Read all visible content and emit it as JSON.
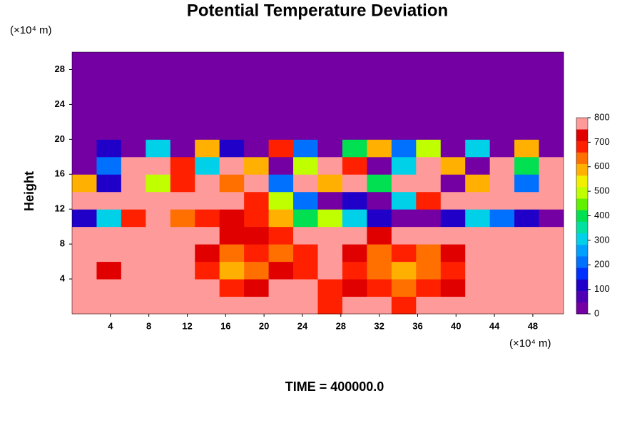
{
  "chart_data": {
    "type": "contour",
    "title": "Potential Temperature Deviation",
    "ylabel": "Height",
    "x_unit": "(×10⁴ m)",
    "y_unit": "(×10⁴ m)",
    "footer": "TIME = 400000.0",
    "xlim": [
      0,
      51.2
    ],
    "ylim": [
      0,
      30
    ],
    "xticks": [
      4,
      8,
      12,
      16,
      20,
      24,
      28,
      32,
      36,
      40,
      44,
      48
    ],
    "yticks": [
      4,
      8,
      12,
      16,
      20,
      24,
      28
    ],
    "zlim": [
      0,
      800
    ],
    "zticks": [
      0,
      100,
      200,
      300,
      400,
      500,
      600,
      700,
      800
    ],
    "colors": [
      "#7400a4",
      "#5000b4",
      "#2000c8",
      "#0030ff",
      "#0070ff",
      "#00a0ff",
      "#00d0e8",
      "#00e0a0",
      "#00e050",
      "#60f000",
      "#c0ff00",
      "#f0f000",
      "#ffb000",
      "#ff7000",
      "#ff2000",
      "#e00000",
      "#ff9a9a"
    ],
    "x": [
      1.28,
      3.84,
      6.4,
      8.96,
      11.52,
      14.08,
      16.64,
      19.2,
      21.76,
      24.32,
      26.88,
      29.44,
      32,
      34.56,
      37.12,
      39.68,
      42.24,
      44.8,
      47.36,
      49.92
    ],
    "y": [
      1,
      3,
      5,
      7,
      9,
      11,
      13,
      15,
      17,
      19,
      21,
      23,
      25,
      27,
      29
    ],
    "z": [
      [
        800,
        800,
        800,
        800,
        800,
        800,
        800,
        800,
        800,
        800,
        700,
        800,
        800,
        700,
        800,
        800,
        800,
        800,
        800,
        800
      ],
      [
        800,
        800,
        800,
        800,
        800,
        800,
        700,
        750,
        800,
        800,
        700,
        750,
        700,
        650,
        700,
        750,
        800,
        800,
        800,
        800
      ],
      [
        800,
        750,
        800,
        800,
        800,
        700,
        600,
        650,
        750,
        700,
        800,
        700,
        650,
        600,
        650,
        700,
        800,
        800,
        800,
        800
      ],
      [
        800,
        800,
        800,
        800,
        800,
        750,
        650,
        700,
        650,
        700,
        800,
        750,
        650,
        700,
        650,
        750,
        800,
        800,
        800,
        800
      ],
      [
        800,
        800,
        800,
        800,
        800,
        800,
        750,
        750,
        700,
        800,
        800,
        800,
        750,
        800,
        800,
        800,
        800,
        800,
        800,
        800
      ],
      [
        100,
        300,
        700,
        800,
        650,
        700,
        750,
        700,
        600,
        400,
        500,
        300,
        100,
        0,
        0,
        100,
        300,
        200,
        100,
        0
      ],
      [
        800,
        800,
        800,
        800,
        800,
        800,
        800,
        700,
        500,
        200,
        0,
        100,
        0,
        300,
        700,
        800,
        800,
        800,
        800,
        800
      ],
      [
        600,
        100,
        800,
        500,
        700,
        800,
        650,
        800,
        200,
        800,
        600,
        800,
        400,
        800,
        800,
        0,
        600,
        800,
        200,
        800
      ],
      [
        0,
        200,
        800,
        800,
        700,
        300,
        800,
        600,
        0,
        500,
        800,
        700,
        0,
        300,
        800,
        600,
        0,
        800,
        400,
        800
      ],
      [
        0,
        100,
        0,
        300,
        0,
        600,
        100,
        0,
        700,
        200,
        0,
        400,
        600,
        200,
        500,
        0,
        300,
        0,
        600,
        0
      ],
      [
        0,
        0,
        0,
        0,
        0,
        0,
        0,
        0,
        0,
        0,
        0,
        0,
        0,
        0,
        0,
        0,
        0,
        0,
        0,
        0
      ],
      [
        0,
        0,
        0,
        0,
        0,
        0,
        0,
        0,
        0,
        0,
        0,
        0,
        0,
        0,
        0,
        0,
        0,
        0,
        0,
        0
      ],
      [
        0,
        0,
        0,
        0,
        0,
        0,
        0,
        0,
        0,
        0,
        0,
        0,
        0,
        0,
        0,
        0,
        0,
        0,
        0,
        0
      ],
      [
        0,
        0,
        0,
        0,
        0,
        0,
        0,
        0,
        0,
        0,
        0,
        0,
        0,
        0,
        0,
        0,
        0,
        0,
        0,
        0
      ],
      [
        0,
        0,
        0,
        0,
        0,
        0,
        0,
        0,
        0,
        0,
        0,
        0,
        0,
        0,
        0,
        0,
        0,
        0,
        0,
        0
      ]
    ]
  }
}
